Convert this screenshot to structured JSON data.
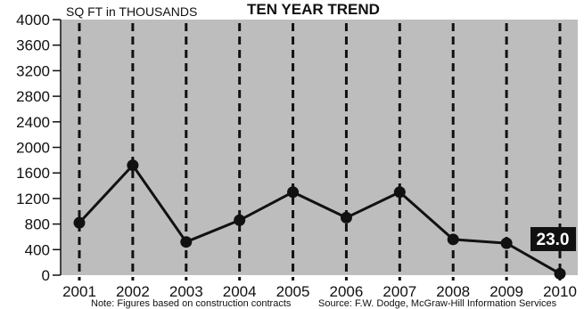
{
  "chart_data": {
    "type": "line",
    "title": "TEN YEAR TREND",
    "ylabel": "SQ FT in THOUSANDS",
    "xlabel": "",
    "categories": [
      "2001",
      "2002",
      "2003",
      "2004",
      "2005",
      "2006",
      "2007",
      "2008",
      "2009",
      "2010"
    ],
    "series": [
      {
        "values": [
          820,
          1720,
          520,
          860,
          1300,
          900,
          1300,
          560,
          500,
          23
        ]
      }
    ],
    "ylim": [
      0,
      4000
    ],
    "yticks": [
      "0",
      "400",
      "800",
      "1200",
      "1600",
      "2000",
      "2400",
      "2800",
      "3200",
      "3600",
      "4000"
    ],
    "grid": "vertical-dashed",
    "callout": {
      "label": "23.0",
      "category": "2010"
    },
    "note": "Note: Figures based on construction contracts",
    "source": "Source: F.W. Dodge, McGraw-Hill Information Services",
    "colors": {
      "plot_bg": "#bdbdbd",
      "line": "#111111",
      "grid": "#111111",
      "callout_bg": "#111111"
    }
  }
}
